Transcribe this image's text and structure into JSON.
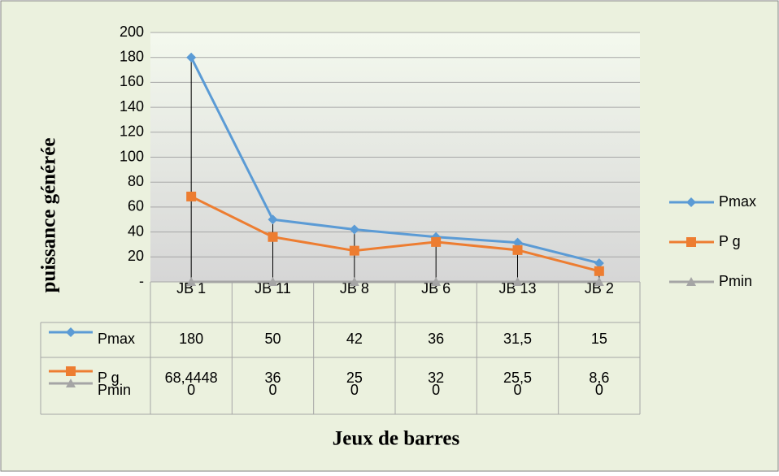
{
  "chart_data": {
    "type": "line",
    "categories": [
      "JB 1",
      "JB 11",
      "JB 8",
      "JB 6",
      "JB 13",
      "JB 2"
    ],
    "series": [
      {
        "name": "Pmax",
        "color": "#5b9bd5",
        "marker": "diamond",
        "values": [
          180,
          50,
          42,
          36,
          31.5,
          15
        ],
        "value_labels": [
          "180",
          "50",
          "42",
          "36",
          "31,5",
          "15"
        ]
      },
      {
        "name": "P g",
        "color": "#ed7d31",
        "marker": "square",
        "values": [
          68.4448,
          36,
          25,
          32,
          25.5,
          8.6
        ],
        "value_labels": [
          "68,4448",
          "36",
          "25",
          "32",
          "25,5",
          "8,6"
        ]
      },
      {
        "name": "Pmin",
        "color": "#a5a5a5",
        "marker": "triangle",
        "values": [
          0,
          0,
          0,
          0,
          0,
          0
        ]
      }
    ],
    "ylabel": "puissance générée",
    "xlabel": "Jeux de barres",
    "ylim": [
      0,
      200
    ],
    "yticks": [
      {
        "value": 0,
        "label": "-"
      },
      20,
      40,
      60,
      80,
      100,
      120,
      140,
      160,
      180,
      200
    ],
    "grid": true,
    "high_low_lines": true,
    "legend": "right",
    "data_table": true
  }
}
